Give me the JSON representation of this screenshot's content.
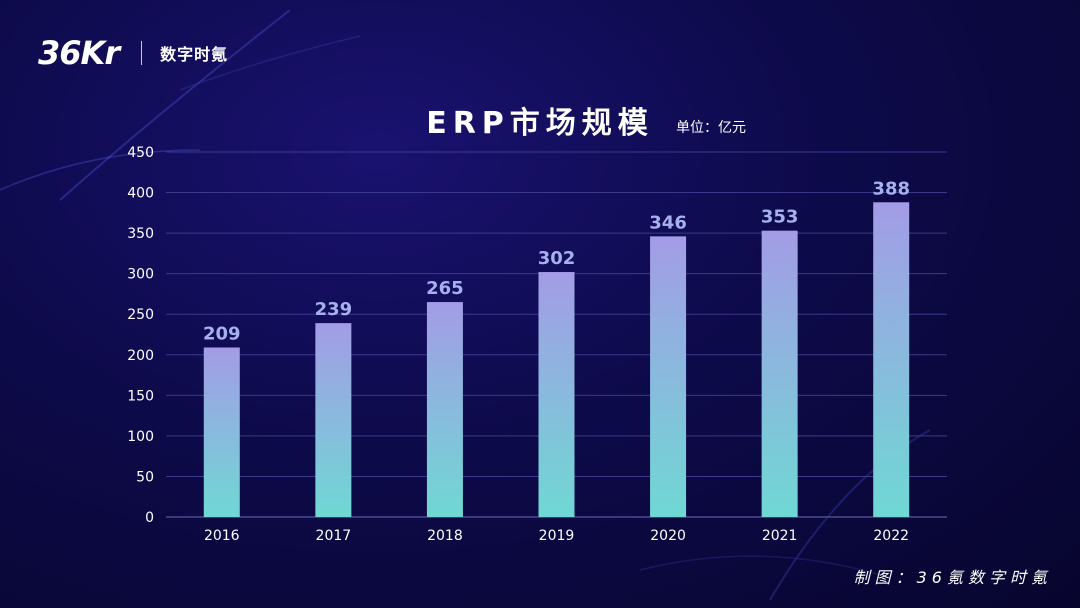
{
  "brand": {
    "logo_text": "36Kr",
    "sub_brand": "数字时氪"
  },
  "footer": {
    "credit": "制图：36氪数字时氪"
  },
  "colors": {
    "bar_top": "#a39ce6",
    "bar_bottom": "#6fd8d4",
    "grid": "#3b3a8a",
    "label": "#a6b0ee"
  },
  "chart_data": {
    "type": "bar",
    "title": "ERP市场规模",
    "unit_label": "单位：亿元",
    "categories": [
      "2016",
      "2017",
      "2018",
      "2019",
      "2020",
      "2021",
      "2022"
    ],
    "values": [
      209,
      239,
      265,
      302,
      346,
      353,
      388
    ],
    "ylim": [
      0,
      450
    ],
    "yticks": [
      0,
      50,
      100,
      150,
      200,
      250,
      300,
      350,
      400,
      450
    ],
    "xlabel": "",
    "ylabel": "",
    "grid": true
  }
}
